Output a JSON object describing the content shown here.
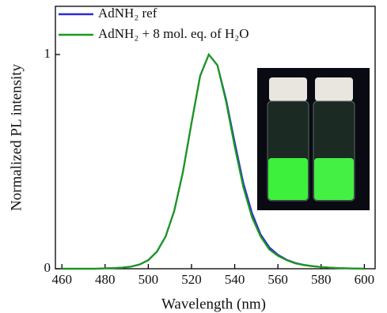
{
  "chart_data": {
    "type": "line",
    "xlabel": "Wavelength (nm)",
    "ylabel": "Normalized PL intensity",
    "x": [
      460,
      464,
      468,
      472,
      476,
      480,
      484,
      488,
      492,
      496,
      500,
      504,
      508,
      512,
      516,
      520,
      524,
      528,
      532,
      536,
      540,
      544,
      548,
      552,
      556,
      560,
      564,
      568,
      572,
      576,
      580,
      584,
      588,
      592,
      596,
      600
    ],
    "series": [
      {
        "name": "AdNH₂ ref",
        "color": "#2b2bd6",
        "values": [
          0,
          0,
          0,
          0,
          0,
          0.002,
          0.003,
          0.005,
          0.01,
          0.02,
          0.04,
          0.08,
          0.15,
          0.27,
          0.45,
          0.68,
          0.9,
          1.0,
          0.95,
          0.79,
          0.59,
          0.4,
          0.26,
          0.16,
          0.1,
          0.065,
          0.042,
          0.027,
          0.018,
          0.012,
          0.008,
          0.005,
          0.003,
          0.002,
          0.001,
          0
        ]
      },
      {
        "name": "AdNH₂ + 8 mol. eq. of H₂O",
        "color": "#1a9a1a",
        "values": [
          0,
          0,
          0,
          0,
          0,
          0.002,
          0.003,
          0.005,
          0.01,
          0.02,
          0.04,
          0.08,
          0.15,
          0.27,
          0.45,
          0.68,
          0.9,
          1.0,
          0.95,
          0.78,
          0.57,
          0.38,
          0.24,
          0.15,
          0.09,
          0.06,
          0.04,
          0.025,
          0.017,
          0.012,
          0.008,
          0.005,
          0.003,
          0.002,
          0.001,
          0
        ]
      }
    ],
    "xlim": [
      457,
      605
    ],
    "xticks": [
      460,
      480,
      500,
      520,
      540,
      560,
      580,
      600
    ],
    "ylim": [
      0,
      1.225
    ],
    "yticks": [
      0,
      1
    ],
    "legend": "top-left"
  }
}
